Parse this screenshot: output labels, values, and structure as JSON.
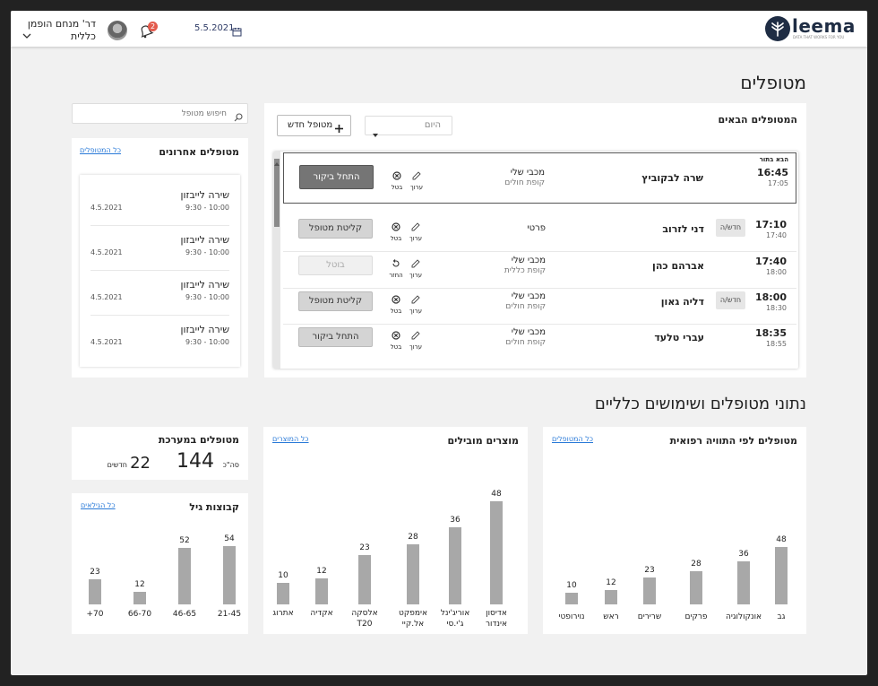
{
  "header": {
    "logo": "leema",
    "logo_tagline": "DATA THAT WORKS FOR YOU",
    "date": "5.5.2021",
    "notification_count": "2",
    "user_name": "דר' מנחם הופמן",
    "user_role": "כללית"
  },
  "page_title": "מטופלים",
  "upcoming": {
    "title": "המטופלים הבאים",
    "filter_value": "היום",
    "new_patient_label": "מטופל חדש",
    "next_label": "הבא בתור",
    "edit_label": "ערוך",
    "cancel_label": "בטל",
    "restore_label": "החזר",
    "rows": [
      {
        "time": "16:45",
        "end": "17:05",
        "name": "שרה לבקוביץ",
        "badge": "",
        "ins1": "מכבי שלי",
        "ins2": "קופת חולים",
        "action": "התחל ביקור",
        "action_style": "dark",
        "restore": false
      },
      {
        "time": "17:10",
        "end": "17:40",
        "name": "דני לזרוב",
        "badge": "חדש/ה",
        "ins1": "פרטי",
        "ins2": "",
        "action": "קליטת מטופל",
        "action_style": "gray",
        "restore": false
      },
      {
        "time": "17:40",
        "end": "18:00",
        "name": "אברהם כהן",
        "badge": "",
        "ins1": "מכבי שלי",
        "ins2": "קופת כללית",
        "action": "בוטל",
        "action_style": "light",
        "restore": true
      },
      {
        "time": "18:00",
        "end": "18:30",
        "name": "דליה גאון",
        "badge": "חדש/ה",
        "ins1": "מכבי שלי",
        "ins2": "קופת חולים",
        "action": "קליטת מטופל",
        "action_style": "gray",
        "restore": false
      },
      {
        "time": "18:35",
        "end": "18:55",
        "name": "עברי טלעד",
        "badge": "",
        "ins1": "מכבי שלי",
        "ins2": "קופת חולים",
        "action": "התחל ביקור",
        "action_style": "gray",
        "restore": false
      }
    ]
  },
  "search": {
    "placeholder": "חיפוש מטופל"
  },
  "recent": {
    "title": "מטופלים אחרונים",
    "link": "כל המטופלים",
    "items": [
      {
        "name": "שירה לייבזון",
        "time": "9:30 - 10:00",
        "date": "4.5.2021"
      },
      {
        "name": "שירה לייבזון",
        "time": "9:30 - 10:00",
        "date": "4.5.2021"
      },
      {
        "name": "שירה לייבזון",
        "time": "9:30 - 10:00",
        "date": "4.5.2021"
      },
      {
        "name": "שירה לייבזון",
        "time": "9:30 - 10:00",
        "date": "4.5.2021"
      }
    ]
  },
  "stats_title": "נתוני מטופלים ושימושים כלליים",
  "system": {
    "title": "מטופלים במערכת",
    "total": "144",
    "total_label": "סה\"כ",
    "new": "22",
    "new_label": "חדשים"
  },
  "colors": {
    "bar": "#a8a8a8",
    "link": "#2a7ad8",
    "accent": "#e35a4c",
    "brand": "#1f2d44"
  },
  "chart_data": [
    {
      "type": "bar",
      "title": "קבוצות גיל",
      "link": "כל הגילאים",
      "categories": [
        "21-45",
        "46-65",
        "66-70",
        "70+"
      ],
      "values": [
        54,
        52,
        12,
        23
      ],
      "ylim": [
        0,
        54
      ]
    },
    {
      "type": "bar",
      "title": "מוצרים מובילים",
      "link": "כל המוצרים",
      "categories": [
        "אדיסון אינדור",
        "אוריג'ינל ג'י.סי",
        "אימפקט אל.קיי",
        "אלסקה T20",
        "אקדיה",
        "אתרוג"
      ],
      "values": [
        48,
        36,
        28,
        23,
        12,
        10
      ],
      "ylim": [
        0,
        48
      ]
    },
    {
      "type": "bar",
      "title": "מטופלים לפי התוויה רפואית",
      "link": "כל המטופלים",
      "categories": [
        "גב",
        "אונקולוגיה",
        "פרקים",
        "שרירים",
        "ראש",
        "נוירופטי"
      ],
      "values": [
        48,
        36,
        28,
        23,
        12,
        10
      ],
      "ylim": [
        0,
        48
      ]
    }
  ]
}
